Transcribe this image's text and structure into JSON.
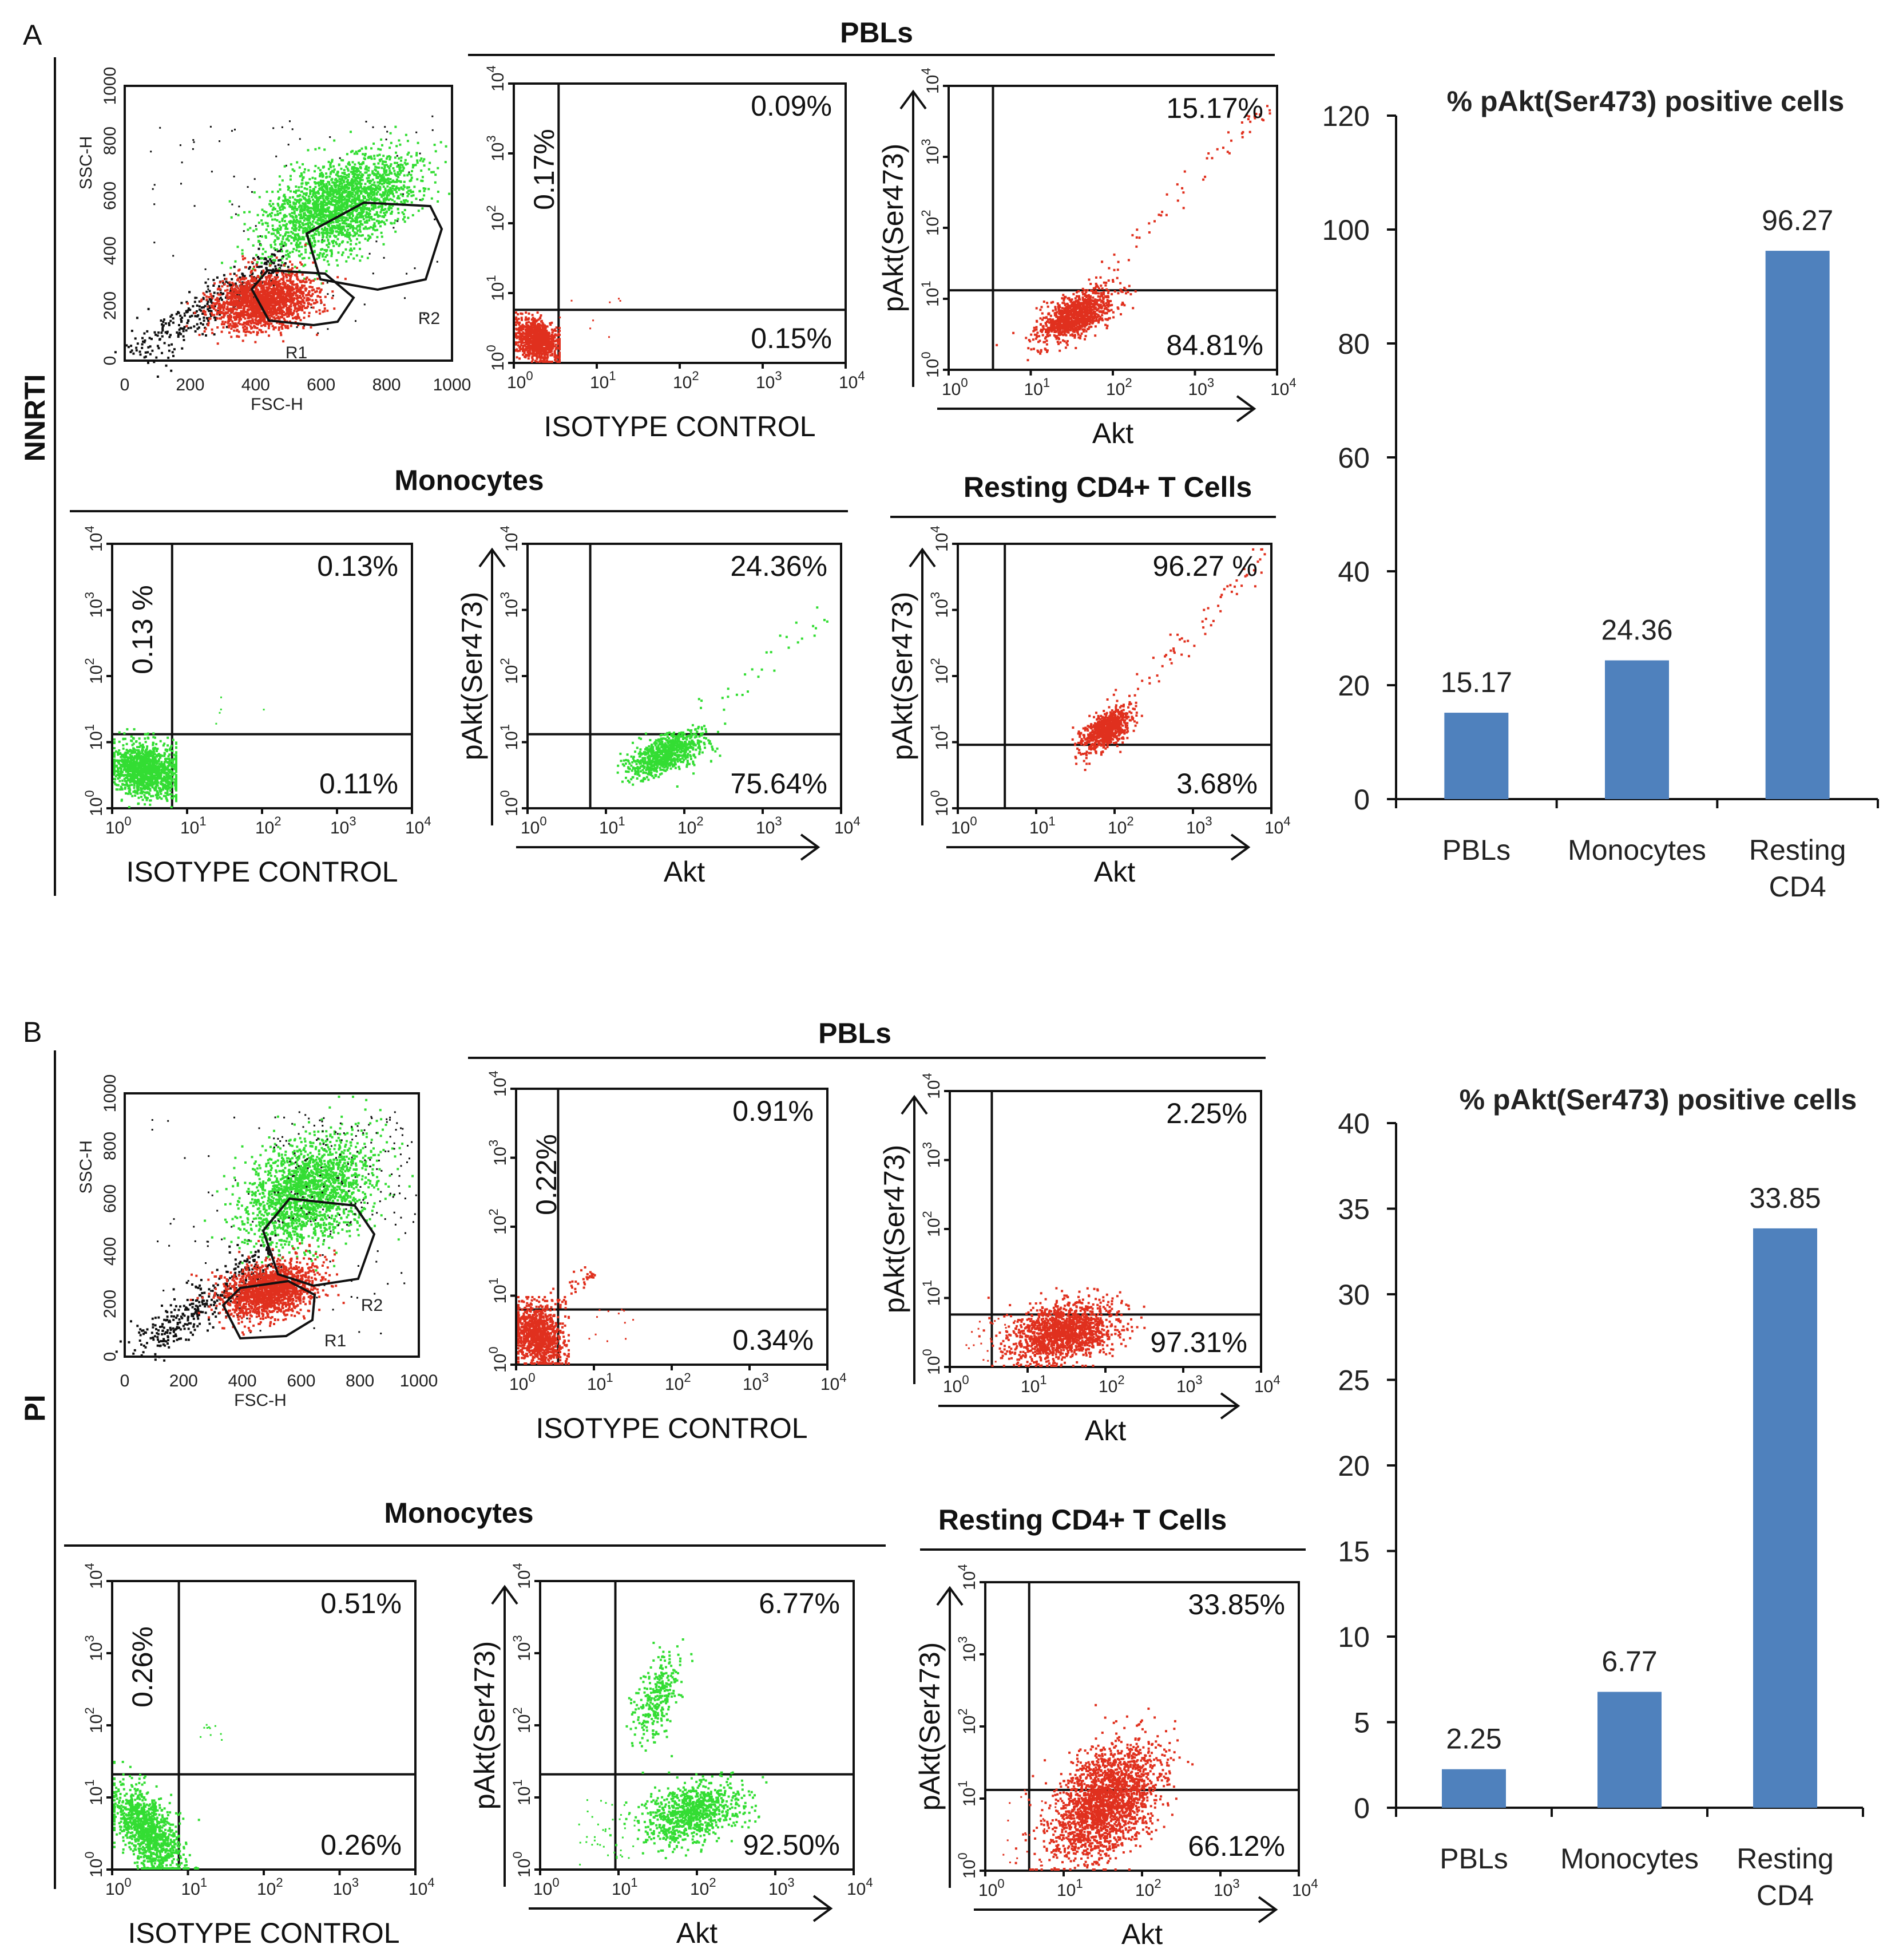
{
  "panels": [
    {
      "label": "A",
      "row_label": "NNRTI",
      "pbls_header": "PBLs",
      "monocytes_header": "Monocytes",
      "resting_header": "Resting CD4+ T Cells",
      "scatter": {
        "x_label": "FSC-H",
        "y_label": "SSC-H",
        "gates": [
          "R1",
          "R2"
        ],
        "ticks": [
          "0",
          "200",
          "400",
          "600",
          "800",
          "1000"
        ]
      },
      "pbl_isotype": {
        "x_label": "ISOTYPE CONTROL",
        "upper_left": "0.17%",
        "upper_right": "0.09%",
        "lower_right": "0.15%"
      },
      "pbl_akt": {
        "x_label": "Akt",
        "y_label": "pAkt(Ser473)",
        "upper_right": "15.17%",
        "lower_right": "84.81%"
      },
      "mono_isotype": {
        "x_label": "ISOTYPE CONTROL",
        "upper_left": "0.13 %",
        "upper_right": "0.13%",
        "lower_right": "0.11%"
      },
      "mono_akt": {
        "x_label": "Akt",
        "y_label": "pAkt(Ser473)",
        "upper_right": "24.36%",
        "lower_right": "75.64%"
      },
      "rest_akt": {
        "x_label": "Akt",
        "y_label": "pAkt(Ser473)",
        "upper_right": "96.27 %",
        "lower_right": "3.68%"
      }
    },
    {
      "label": "B",
      "row_label": "PI",
      "pbls_header": "PBLs",
      "monocytes_header": "Monocytes",
      "resting_header": "Resting CD4+ T Cells",
      "scatter": {
        "x_label": "FSC-H",
        "y_label": "SSC-H",
        "gates": [
          "R1",
          "R2"
        ],
        "ticks": [
          "0",
          "200",
          "400",
          "600",
          "800",
          "1000"
        ]
      },
      "pbl_isotype": {
        "x_label": "ISOTYPE CONTROL",
        "upper_left": "0.22%",
        "upper_right": "0.91%",
        "lower_right": "0.34%"
      },
      "pbl_akt": {
        "x_label": "Akt",
        "y_label": "pAkt(Ser473)",
        "upper_right": "2.25%",
        "lower_right": "97.31%"
      },
      "mono_isotype": {
        "x_label": "ISOTYPE CONTROL",
        "upper_left": "0.26%",
        "upper_right": "0.51%",
        "lower_right": "0.26%"
      },
      "mono_akt": {
        "x_label": "Akt",
        "y_label": "pAkt(Ser473)",
        "upper_right": "6.77%",
        "lower_right": "92.50%"
      },
      "rest_akt": {
        "x_label": "Akt",
        "y_label": "pAkt(Ser473)",
        "upper_right": "33.85%",
        "lower_right": "66.12%"
      }
    }
  ],
  "log_ticks": {
    "base": "10",
    "exponents": [
      "0",
      "1",
      "2",
      "3",
      "4"
    ]
  },
  "colors": {
    "red_dots": "#e0301e",
    "green_dots": "#33dd33",
    "black_dots": "#111111",
    "bar": "#4f81bd"
  },
  "chart_data": [
    {
      "type": "bar",
      "title": "% pAkt(Ser473) positive cells",
      "categories": [
        "PBLs",
        "Monocytes",
        "Resting CD4"
      ],
      "values": [
        15.17,
        24.36,
        96.27
      ],
      "labels": [
        "15.17",
        "24.36",
        "96.27"
      ],
      "yticks": [
        0,
        20,
        40,
        60,
        80,
        100,
        120
      ],
      "ylim": [
        0,
        120
      ],
      "xlabel": "",
      "ylabel": "",
      "grid": false
    },
    {
      "type": "bar",
      "title": "% pAkt(Ser473) positive cells",
      "categories": [
        "PBLs",
        "Monocytes",
        "Resting CD4"
      ],
      "values": [
        2.25,
        6.77,
        33.85
      ],
      "labels": [
        "2.25",
        "6.77",
        "33.85"
      ],
      "yticks": [
        0,
        5,
        10,
        15,
        20,
        25,
        30,
        35,
        40
      ],
      "ylim": [
        0,
        40
      ],
      "xlabel": "",
      "ylabel": "",
      "grid": false
    }
  ]
}
